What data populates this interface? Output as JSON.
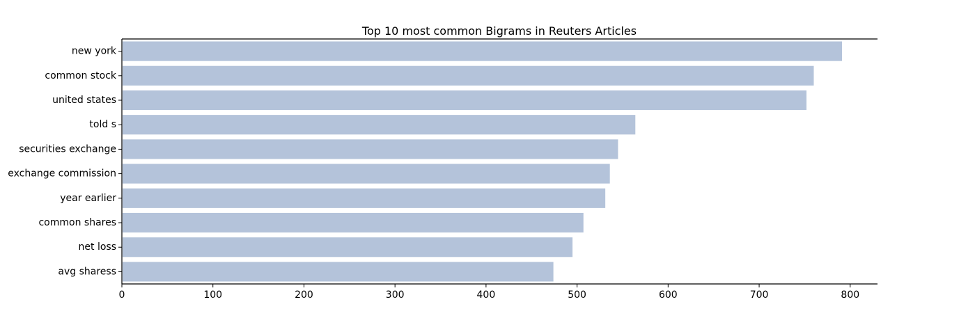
{
  "chart_data": {
    "type": "bar",
    "orientation": "horizontal",
    "title": "Top 10 most common Bigrams in Reuters Articles",
    "xlabel": "",
    "ylabel": "",
    "categories": [
      "new york",
      "common stock",
      "united states",
      "told s",
      "securities exchange",
      "exchange commission",
      "year earlier",
      "common shares",
      "net loss",
      "avg sharess"
    ],
    "values": [
      791,
      760,
      752,
      564,
      545,
      536,
      531,
      507,
      495,
      474
    ],
    "xlim": [
      0,
      830
    ],
    "xticks": [
      0,
      100,
      200,
      300,
      400,
      500,
      600,
      700,
      800
    ],
    "grid": false,
    "legend": "none",
    "colors": {
      "bar": "#b4c3da",
      "axis": "#000000",
      "text": "#000000"
    }
  }
}
